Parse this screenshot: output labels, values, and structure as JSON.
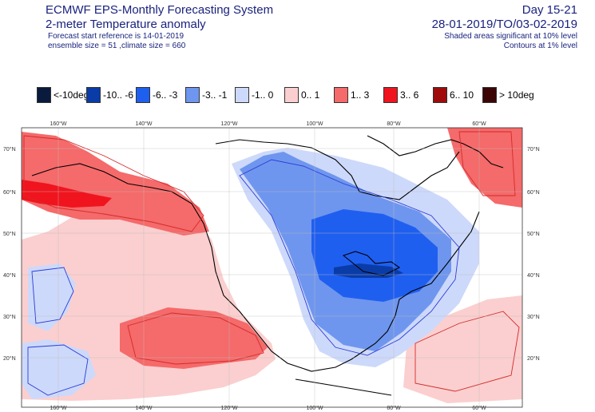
{
  "header": {
    "title_line1": "ECMWF EPS-Monthly Forecasting System",
    "title_line2": "2-meter Temperature anomaly",
    "forecast_start": "Forecast start reference is 14-01-2019",
    "ensemble": "ensemble size = 51  ,climate size = 660",
    "day_range": "Day 15-21",
    "period": "28-01-2019/TO/03-02-2019",
    "shading_note": "Shaded areas significant at 10% level",
    "contour_note": "Contours at 1% level"
  },
  "legend": [
    {
      "label": "<-10deg",
      "color": "#0a1a3c"
    },
    {
      "label": "-10.. -6",
      "color": "#0a3ca8"
    },
    {
      "label": "-6.. -3",
      "color": "#1f5ff0"
    },
    {
      "label": "-3.. -1",
      "color": "#6f96ee"
    },
    {
      "label": "-1.. 0",
      "color": "#cdd9fa"
    },
    {
      "label": "0.. 1",
      "color": "#fbcfcf"
    },
    {
      "label": "1.. 3",
      "color": "#f56a6a"
    },
    {
      "label": "3.. 6",
      "color": "#f0141e"
    },
    {
      "label": "6.. 10",
      "color": "#a00a0a"
    },
    {
      "label": "> 10deg",
      "color": "#3c0505"
    }
  ],
  "map": {
    "lon_labels_top": [
      "160°W",
      "140°W",
      "120°W",
      "100°W",
      "80°W",
      "60°W"
    ],
    "lon_labels_bottom": [
      "160°W",
      "140°W",
      "120°W",
      "100°W",
      "80°W",
      "60°W"
    ],
    "lat_labels_left": [
      "70°N",
      "60°N",
      "50°N",
      "40°N",
      "30°N",
      "20°N"
    ],
    "lat_labels_right": [
      "70°N",
      "60°N",
      "50°N",
      "40°N",
      "30°N",
      "20°N"
    ]
  }
}
